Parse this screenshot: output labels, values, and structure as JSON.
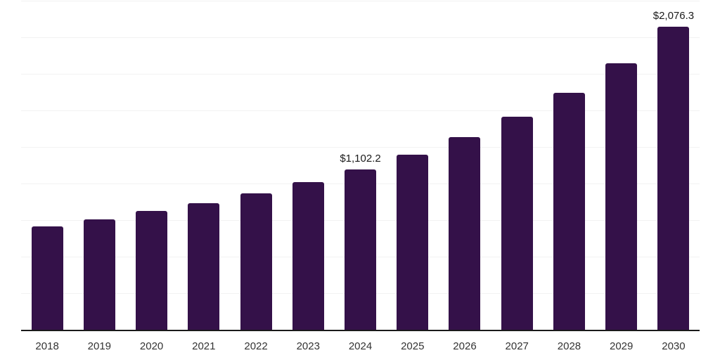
{
  "chart": {
    "background_color": "#ffffff",
    "bar_color": "#341149",
    "gridline_color": "#f2f2f2",
    "axis_line_color": "#1a1a1a",
    "tick_label_color": "#333333",
    "data_label_color": "#1a1a1a"
  },
  "chart_data": {
    "type": "bar",
    "title": "",
    "xlabel": "",
    "ylabel": "",
    "categories": [
      "2018",
      "2019",
      "2020",
      "2021",
      "2022",
      "2023",
      "2024",
      "2025",
      "2026",
      "2027",
      "2028",
      "2029",
      "2030"
    ],
    "values": [
      710,
      762,
      816,
      872,
      940,
      1017,
      1102.2,
      1204,
      1324,
      1461,
      1625,
      1828,
      2076.3
    ],
    "data_labels": [
      "",
      "",
      "",
      "",
      "",
      "",
      "$1,102.2",
      "",
      "",
      "",
      "",
      "",
      "$2,076.3"
    ],
    "ylim": [
      0,
      2250
    ],
    "gridline_interval": 250,
    "grid": "horizontal-only",
    "legend_position": "none",
    "y_axis_labels_visible": false
  }
}
